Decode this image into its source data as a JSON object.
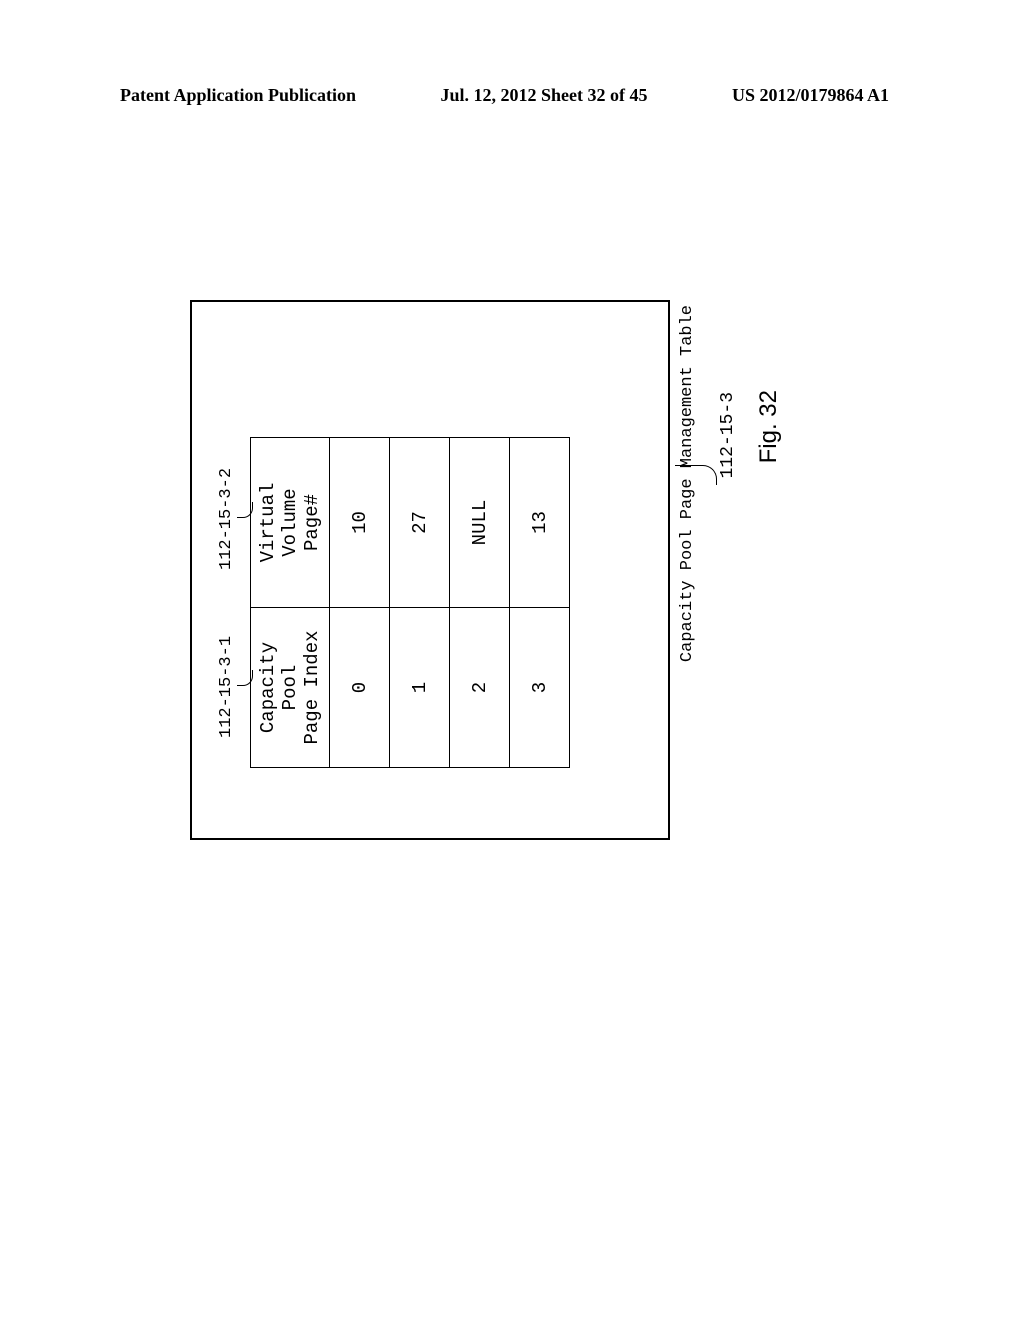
{
  "header": {
    "left": "Patent Application Publication",
    "center": "Jul. 12, 2012  Sheet 32 of 45",
    "right": "US 2012/0179864 A1"
  },
  "callouts": {
    "col1_ref": "112-15-3-1",
    "col2_ref": "112-15-3-2",
    "table_ref": "112-15-3"
  },
  "table": {
    "caption": "Capacity Pool Page Management Table",
    "columns": {
      "col1": "Capacity Pool\nPage Index",
      "col2": "Virtual Volume\nPage#"
    },
    "rows": [
      {
        "index": "0",
        "page": "10"
      },
      {
        "index": "1",
        "page": "27"
      },
      {
        "index": "2",
        "page": "NULL"
      },
      {
        "index": "3",
        "page": "13"
      }
    ]
  },
  "figure_label": "Fig. 32"
}
